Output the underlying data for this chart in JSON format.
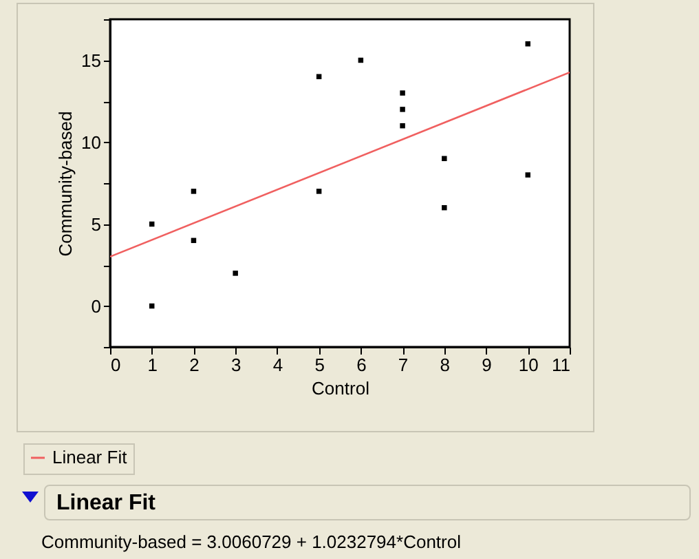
{
  "chart_data": {
    "type": "scatter",
    "xlabel": "Control",
    "ylabel": "Community-based",
    "x": [
      1,
      1,
      2,
      2,
      3,
      5,
      5,
      6,
      7,
      7,
      7,
      8,
      8,
      10,
      10
    ],
    "series": [
      {
        "color": "#000000",
        "marker": "square",
        "values": [
          5,
          0,
          7,
          4,
          2,
          14,
          7,
          15,
          13,
          12,
          11,
          9,
          6,
          16,
          8
        ]
      },
      {
        "type": "line",
        "name": "Linear Fit",
        "color": "#f06060",
        "x": [
          0,
          11
        ],
        "values": [
          3.01,
          14.26
        ]
      }
    ],
    "xlim": [
      0,
      11
    ],
    "xticks": [
      0,
      1,
      2,
      3,
      4,
      5,
      6,
      7,
      8,
      9,
      10,
      11
    ],
    "ylim": [
      -2.5,
      17.5
    ],
    "yticks": [
      {
        "value": -2.5,
        "label": null
      },
      0,
      {
        "value": 2.5,
        "label": null
      },
      5,
      {
        "value": 7.5,
        "label": null
      },
      10,
      {
        "value": 12.5,
        "label": null
      },
      15,
      {
        "value": 17.5,
        "label": null
      }
    ],
    "legend": "bottom left",
    "annotations": [
      "Linear Fit",
      "Community-based = 3.0060729 + 1.0232794*Control"
    ]
  }
}
